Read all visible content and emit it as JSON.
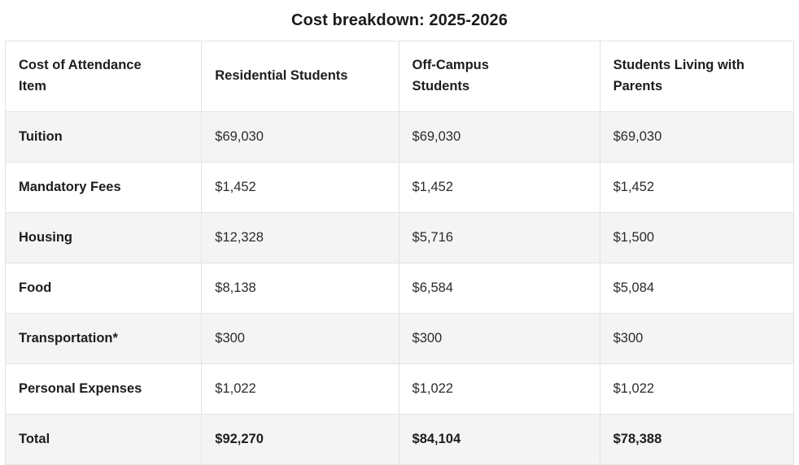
{
  "title": "Cost breakdown: 2025-2026",
  "colors": {
    "row_stripe": "#f4f4f4",
    "border": "#e3e3e3",
    "text_dark": "#1d1d1f"
  },
  "chart_data": {
    "type": "table",
    "title": "Cost breakdown: 2025-2026",
    "columns": [
      "Cost of Attendance Item",
      "Residential Students",
      "Off-Campus Students",
      "Students Living with Parents"
    ],
    "rows": [
      [
        "Tuition",
        "$69,030",
        "$69,030",
        "$69,030"
      ],
      [
        "Mandatory Fees",
        "$1,452",
        "$1,452",
        "$1,452"
      ],
      [
        "Housing",
        "$12,328",
        "$5,716",
        "$1,500"
      ],
      [
        "Food",
        "$8,138",
        "$6,584",
        "$5,084"
      ],
      [
        "Transportation*",
        "$300",
        "$300",
        "$300"
      ],
      [
        "Personal Expenses",
        "$1,022",
        "$1,022",
        "$1,022"
      ],
      [
        "Total",
        "$92,270",
        "$84,104",
        "$78,388"
      ]
    ]
  },
  "table": {
    "headers": [
      "Cost of Attendance\nItem",
      "Residential Students",
      "Off-Campus\nStudents",
      "Students Living with\nParents"
    ],
    "rows": [
      {
        "label": "Tuition",
        "values": [
          "$69,030",
          "$69,030",
          "$69,030"
        ]
      },
      {
        "label": "Mandatory Fees",
        "values": [
          "$1,452",
          "$1,452",
          "$1,452"
        ]
      },
      {
        "label": "Housing",
        "values": [
          "$12,328",
          "$5,716",
          "$1,500"
        ]
      },
      {
        "label": "Food",
        "values": [
          "$8,138",
          "$6,584",
          "$5,084"
        ]
      },
      {
        "label": "Transportation*",
        "values": [
          "$300",
          "$300",
          "$300"
        ]
      },
      {
        "label": "Personal Expenses",
        "values": [
          "$1,022",
          "$1,022",
          "$1,022"
        ]
      },
      {
        "label": "Total",
        "values": [
          "$92,270",
          "$84,104",
          "$78,388"
        ]
      }
    ]
  }
}
